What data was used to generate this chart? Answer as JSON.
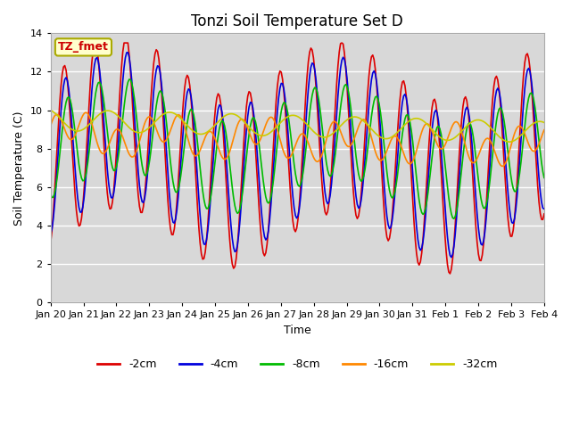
{
  "title": "Tonzi Soil Temperature Set D",
  "ylabel": "Soil Temperature (C)",
  "xlabel": "Time",
  "ylim": [
    0,
    14
  ],
  "yticks": [
    0,
    2,
    4,
    6,
    8,
    10,
    12,
    14
  ],
  "annotation_text": "TZ_fmet",
  "annotation_color": "#cc0000",
  "annotation_bg": "#ffffcc",
  "annotation_border": "#aaaa00",
  "legend_labels": [
    "-2cm",
    "-4cm",
    "-8cm",
    "-16cm",
    "-32cm"
  ],
  "colors": [
    "#dd0000",
    "#0000dd",
    "#00bb00",
    "#ff8800",
    "#cccc00"
  ],
  "background_color": "#d8d8d8",
  "line_width": 1.2,
  "title_fontsize": 12,
  "axis_fontsize": 9,
  "tick_labels": [
    "Jan 20",
    "Jan 21",
    "Jan 22",
    "Jan 23",
    "Jan 24",
    "Jan 25",
    "Jan 26",
    "Jan 27",
    "Jan 28",
    "Jan 29",
    "Jan 30",
    "Jan 31",
    "Feb 1",
    "Feb 2",
    "Feb 3",
    "Feb 4"
  ]
}
